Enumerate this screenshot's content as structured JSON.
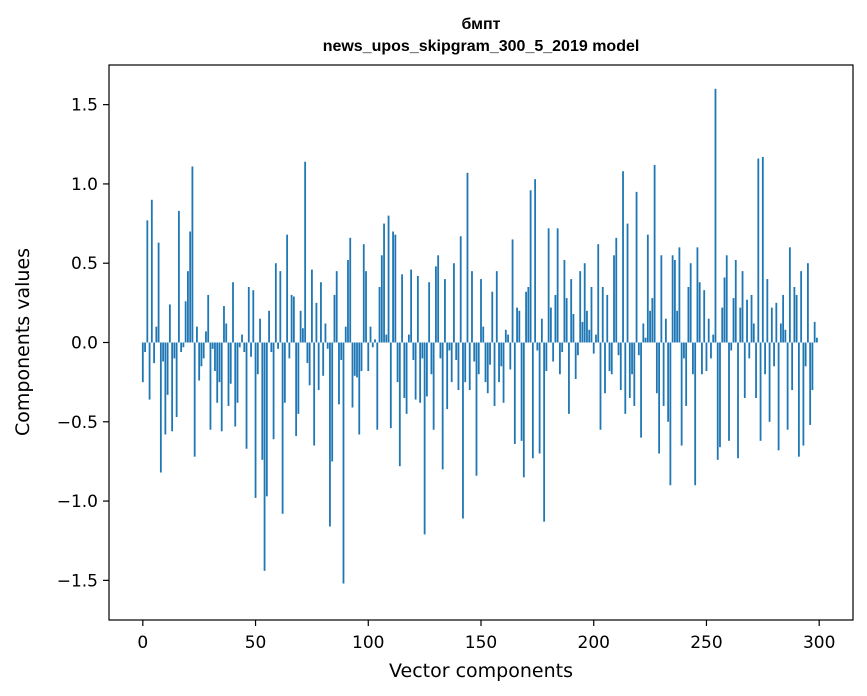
{
  "chart_data": {
    "type": "bar",
    "title_line1": "бмпт",
    "title_line2": "news_upos_skipgram_300_5_2019 model",
    "xlabel": "Vector components",
    "ylabel": "Components values",
    "xlim": [
      -15,
      315
    ],
    "ylim": [
      -1.75,
      1.75
    ],
    "xticks": [
      0,
      50,
      100,
      150,
      200,
      250,
      300
    ],
    "yticks": [
      -1.5,
      -1.0,
      -0.5,
      0.0,
      0.5,
      1.0,
      1.5
    ],
    "ytick_labels": [
      "−1.5",
      "−1.0",
      "−0.5",
      "0.0",
      "0.5",
      "1.0",
      "1.5"
    ],
    "bar_color": "#1f77b4",
    "grid": false,
    "values": [
      -0.25,
      -0.06,
      0.77,
      -0.36,
      0.9,
      -0.13,
      0.1,
      0.63,
      -0.82,
      -0.12,
      -0.58,
      -0.33,
      0.24,
      -0.56,
      -0.1,
      -0.47,
      0.83,
      -0.06,
      -0.03,
      0.26,
      0.45,
      0.7,
      1.11,
      -0.72,
      0.1,
      -0.24,
      -0.15,
      -0.1,
      0.07,
      0.3,
      -0.55,
      -0.04,
      -0.18,
      -0.38,
      -0.25,
      -0.56,
      0.23,
      0.12,
      -0.4,
      -0.26,
      0.38,
      -0.53,
      -0.38,
      -0.03,
      0.05,
      -0.06,
      -0.67,
      0.35,
      -0.09,
      0.33,
      -0.98,
      -0.2,
      0.15,
      -0.74,
      -1.44,
      -0.97,
      0.2,
      -0.06,
      -0.61,
      0.5,
      -0.04,
      0.45,
      -1.08,
      -0.38,
      0.68,
      -0.1,
      0.3,
      0.29,
      -0.59,
      -0.45,
      0.2,
      0.09,
      1.14,
      -0.13,
      -0.27,
      0.46,
      -0.65,
      0.25,
      -0.3,
      0.38,
      -0.21,
      0.12,
      -0.04,
      -1.16,
      -0.75,
      0.3,
      0.45,
      -0.39,
      -0.11,
      -1.52,
      0.1,
      0.52,
      0.66,
      -0.41,
      -0.21,
      -0.22,
      -0.58,
      -0.18,
      0.62,
      0.45,
      -0.18,
      0.1,
      -0.03,
      0.02,
      -0.55,
      0.35,
      0.55,
      0.75,
      0.05,
      0.8,
      -0.54,
      0.7,
      0.68,
      -0.25,
      -0.78,
      0.43,
      -0.35,
      -0.45,
      0.05,
      0.46,
      -0.11,
      -0.36,
      0.42,
      -0.38,
      -0.1,
      -1.21,
      -0.34,
      0.38,
      -0.2,
      -0.55,
      0.48,
      0.55,
      -0.1,
      -0.8,
      0.4,
      -0.42,
      -0.05,
      -0.25,
      0.5,
      -0.11,
      -0.3,
      0.67,
      -1.11,
      -0.25,
      1.07,
      -0.3,
      0.45,
      -0.12,
      -0.84,
      -0.2,
      0.4,
      0.1,
      -0.25,
      -0.32,
      -0.14,
      0.32,
      -0.4,
      0.45,
      -0.25,
      -0.15,
      -0.38,
      0.08,
      0.05,
      -0.17,
      0.65,
      -0.64,
      0.22,
      0.2,
      -0.62,
      -0.85,
      0.32,
      0.35,
      0.96,
      -0.73,
      1.03,
      -0.05,
      -0.7,
      0.15,
      -1.13,
      -0.18,
      0.72,
      0.22,
      -0.12,
      0.3,
      0.72,
      -0.2,
      -0.06,
      0.52,
      0.28,
      -0.45,
      0.4,
      0.18,
      -0.23,
      -0.08,
      0.45,
      0.13,
      0.5,
      0.2,
      0.08,
      0.35,
      -0.07,
      0.05,
      0.62,
      -0.55,
      0.35,
      -0.32,
      0.3,
      -0.18,
      -0.2,
      0.55,
      0.66,
      -0.08,
      -0.3,
      1.08,
      -0.45,
      0.75,
      -0.35,
      -0.2,
      -0.4,
      0.95,
      -0.08,
      -0.6,
      0.12,
      0.03,
      0.68,
      0.2,
      0.28,
      1.12,
      -0.32,
      -0.7,
      0.55,
      -0.4,
      0.15,
      -0.5,
      -0.9,
      0.55,
      0.52,
      0.2,
      0.6,
      -0.65,
      -0.1,
      -0.4,
      0.35,
      0.5,
      -0.2,
      -0.9,
      0.6,
      0.38,
      -0.2,
      0.33,
      -0.18,
      0.15,
      -0.1,
      0.05,
      1.6,
      -0.74,
      -0.66,
      0.22,
      0.41,
      0.55,
      -0.62,
      -0.05,
      0.28,
      0.52,
      -0.73,
      0.22,
      0.45,
      -0.35,
      0.27,
      -0.1,
      0.3,
      0.12,
      -0.35,
      1.16,
      -0.62,
      1.17,
      -0.2,
      0.4,
      -0.5,
      0.22,
      -0.15,
      0.25,
      -0.68,
      0.12,
      0.3,
      0.08,
      -0.55,
      0.6,
      -0.3,
      0.35,
      0.3,
      -0.72,
      0.45,
      -0.65,
      -0.15,
      0.5,
      -0.52,
      -0.3,
      0.13,
      0.03
    ]
  }
}
